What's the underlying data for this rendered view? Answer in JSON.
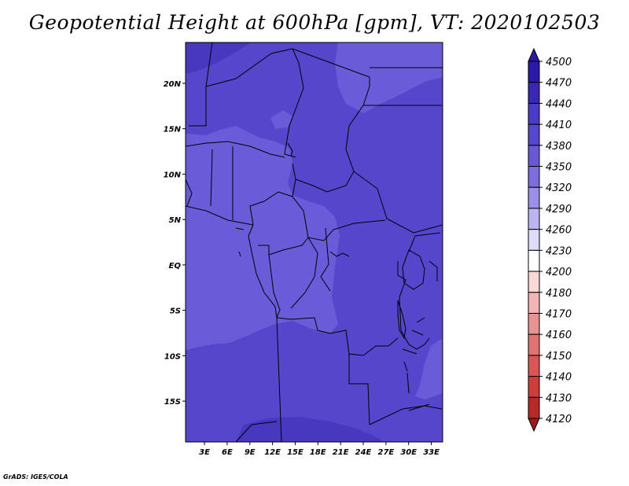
{
  "title": "Geopotential Height at 600hPa [gpm], VT: 2020102503",
  "credit": "GrADS: IGES/COLA",
  "map": {
    "lat_labels": [
      "20N",
      "15N",
      "10N",
      "5N",
      "EQ",
      "5S",
      "10S",
      "15S"
    ],
    "lat_values": [
      20,
      15,
      10,
      5,
      0,
      -5,
      -10,
      -15
    ],
    "lon_labels": [
      "3E",
      "6E",
      "9E",
      "12E",
      "15E",
      "18E",
      "21E",
      "24E",
      "27E",
      "30E",
      "33E"
    ],
    "lon_values": [
      3,
      6,
      9,
      12,
      15,
      18,
      21,
      24,
      27,
      30,
      33
    ],
    "lon_range": [
      0.5,
      34.5
    ],
    "lat_range": [
      -19.5,
      24.5
    ]
  },
  "colorbar": {
    "labels": [
      "4500",
      "4470",
      "4440",
      "4410",
      "4380",
      "4350",
      "4320",
      "4290",
      "4260",
      "4230",
      "4200",
      "4180",
      "4170",
      "4160",
      "4150",
      "4140",
      "4130",
      "4120"
    ],
    "colors": [
      "#2a1aa6",
      "#3a28b4",
      "#4a3cc6",
      "#5648ce",
      "#6858d6",
      "#7c6cdc",
      "#9a8ee6",
      "#bcb6f0",
      "#dedcf8",
      "#ffffff",
      "#fbd8d8",
      "#f2b4b4",
      "#e89494",
      "#e07474",
      "#d85656",
      "#cc3e3e",
      "#b62a2a",
      "#9c1c1c"
    ]
  },
  "fill_colors": {
    "band_4380": "#6a5bd8",
    "band_4410": "#5546cc",
    "band_4440": "#4838c0"
  }
}
